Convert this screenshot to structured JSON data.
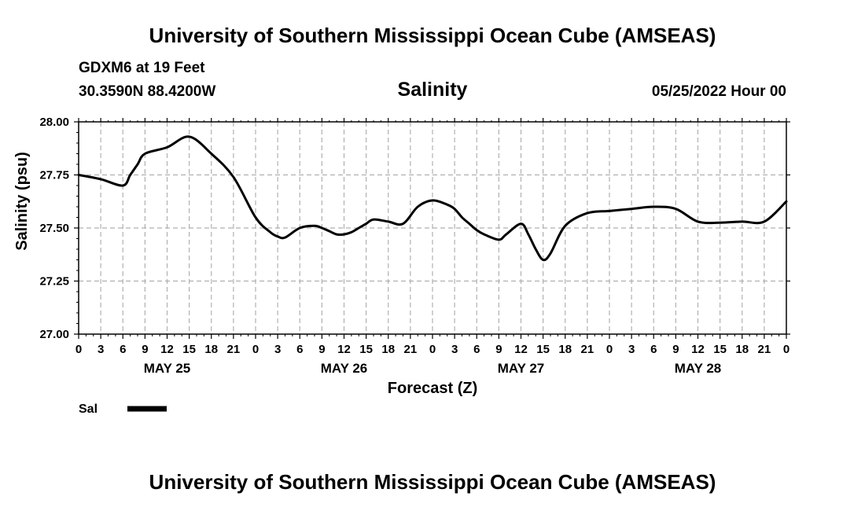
{
  "header": {
    "title_top": "University of Southern Mississippi Ocean Cube (AMSEAS)",
    "station": "GDXM6 at 19 Feet",
    "location": "30.3590N  88.4200W",
    "chart_title": "Salinity",
    "datetime": "05/25/2022 Hour 00",
    "title_bottom": "University of Southern Mississippi Ocean Cube (AMSEAS)"
  },
  "legend": {
    "label": "Sal"
  },
  "colors": {
    "line": "#000000",
    "grid": "#b0b0b0",
    "background": "#ffffff"
  },
  "chart_data": {
    "type": "line",
    "title": "Salinity",
    "xlabel": "Forecast (Z)",
    "ylabel": "Salinity (psu)",
    "xlim": [
      0,
      96
    ],
    "ylim": [
      27.0,
      28.0
    ],
    "yticks": [
      27.0,
      27.25,
      27.5,
      27.75,
      28.0
    ],
    "ytick_labels": [
      "27.00",
      "27.25",
      "27.50",
      "27.75",
      "28.00"
    ],
    "xticks": [
      0,
      3,
      6,
      9,
      12,
      15,
      18,
      21,
      24,
      27,
      30,
      33,
      36,
      39,
      42,
      45,
      48,
      51,
      54,
      57,
      60,
      63,
      66,
      69,
      72,
      75,
      78,
      81,
      84,
      87,
      90,
      93,
      96
    ],
    "xtick_labels": [
      "0",
      "3",
      "6",
      "9",
      "12",
      "15",
      "18",
      "21",
      "0",
      "3",
      "6",
      "9",
      "12",
      "15",
      "18",
      "21",
      "0",
      "3",
      "6",
      "9",
      "12",
      "15",
      "18",
      "21",
      "0",
      "3",
      "6",
      "9",
      "12",
      "15",
      "18",
      "21",
      "0"
    ],
    "date_labels": [
      {
        "x": 12,
        "label": "MAY 25"
      },
      {
        "x": 36,
        "label": "MAY 26"
      },
      {
        "x": 60,
        "label": "MAY 27"
      },
      {
        "x": 84,
        "label": "MAY 28"
      }
    ],
    "grid": true,
    "legend_position": "bottom-left",
    "series": [
      {
        "name": "Sal",
        "x": [
          0,
          3,
          6,
          7,
          8,
          9,
          12,
          15,
          18,
          21,
          24,
          26,
          27,
          28,
          30,
          32,
          33,
          34,
          35,
          36,
          37,
          38,
          39,
          40,
          42,
          44,
          46,
          48,
          50,
          51,
          52,
          53,
          54,
          55,
          57,
          58,
          60,
          61,
          62,
          63,
          64,
          66,
          69,
          72,
          75,
          78,
          81,
          84,
          87,
          90,
          93,
          96
        ],
        "y": [
          27.75,
          27.73,
          27.7,
          27.75,
          27.8,
          27.85,
          27.88,
          27.93,
          27.85,
          27.74,
          27.55,
          27.48,
          27.46,
          27.455,
          27.5,
          27.51,
          27.5,
          27.485,
          27.47,
          27.47,
          27.48,
          27.5,
          27.52,
          27.54,
          27.53,
          27.52,
          27.6,
          27.63,
          27.61,
          27.59,
          27.55,
          27.52,
          27.49,
          27.47,
          27.445,
          27.47,
          27.52,
          27.47,
          27.4,
          27.35,
          27.38,
          27.51,
          27.57,
          27.58,
          27.59,
          27.6,
          27.59,
          27.53,
          27.525,
          27.53,
          27.53,
          27.625
        ]
      }
    ]
  }
}
